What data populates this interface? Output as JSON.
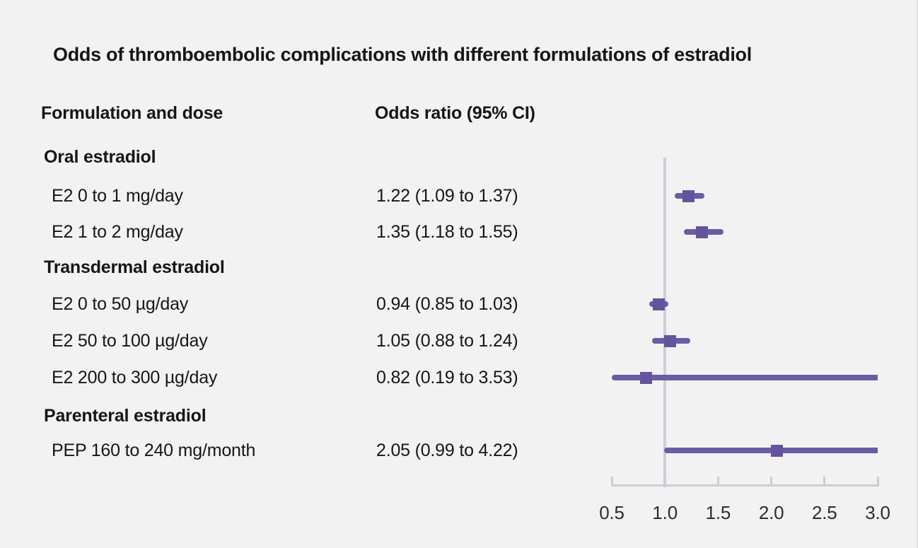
{
  "title": "Odds of thromboembolic complications with different formulations of estradiol",
  "columns": {
    "formulation": "Formulation and dose",
    "odds_ratio": "Odds ratio (95% CI)"
  },
  "chart_data": {
    "type": "forest",
    "title": "Odds of thromboembolic complications with different formulations of estradiol",
    "groups": [
      {
        "label": "Oral estradiol",
        "rows": [
          {
            "label": "E2 0 to 1 mg/day",
            "or_text": "1.22 (1.09 to 1.37)",
            "estimate": 1.22,
            "ci_low": 1.09,
            "ci_high": 1.37
          },
          {
            "label": "E2 1 to 2 mg/day",
            "or_text": "1.35 (1.18 to 1.55)",
            "estimate": 1.35,
            "ci_low": 1.18,
            "ci_high": 1.55
          }
        ]
      },
      {
        "label": "Transdermal estradiol",
        "rows": [
          {
            "label": "E2 0 to 50 µg/day",
            "or_text": "0.94 (0.85 to 1.03)",
            "estimate": 0.94,
            "ci_low": 0.85,
            "ci_high": 1.03
          },
          {
            "label": "E2 50 to 100 µg/day",
            "or_text": "1.05 (0.88 to 1.24)",
            "estimate": 1.05,
            "ci_low": 0.88,
            "ci_high": 1.24
          },
          {
            "label": "E2 200 to 300 µg/day",
            "or_text": "0.82 (0.19 to 3.53)",
            "estimate": 0.82,
            "ci_low": 0.19,
            "ci_high": 3.53
          }
        ]
      },
      {
        "label": "Parenteral estradiol",
        "rows": [
          {
            "label": "PEP 160 to 240 mg/month",
            "or_text": "2.05 (0.99 to 4.22)",
            "estimate": 2.05,
            "ci_low": 0.99,
            "ci_high": 4.22
          }
        ]
      }
    ],
    "x_axis": {
      "min": 0.5,
      "max": 3.0,
      "ticks": [
        0.5,
        1.0,
        1.5,
        2.0,
        2.5,
        3.0
      ],
      "tick_labels": [
        "0.5",
        "1.0",
        "1.5",
        "2.0",
        "2.5",
        "3.0"
      ],
      "reference_line": 1.0
    },
    "layout_hints": {
      "grid": false,
      "legend": "none",
      "clip_ci_to_axis": true
    },
    "colors": {
      "marker": "#64549d",
      "ci_line": "#6b5ca6",
      "axis": "#c9ced8",
      "reference_line": "#cbd0d9",
      "background": "#f2f2f2",
      "text": "#161616"
    }
  }
}
